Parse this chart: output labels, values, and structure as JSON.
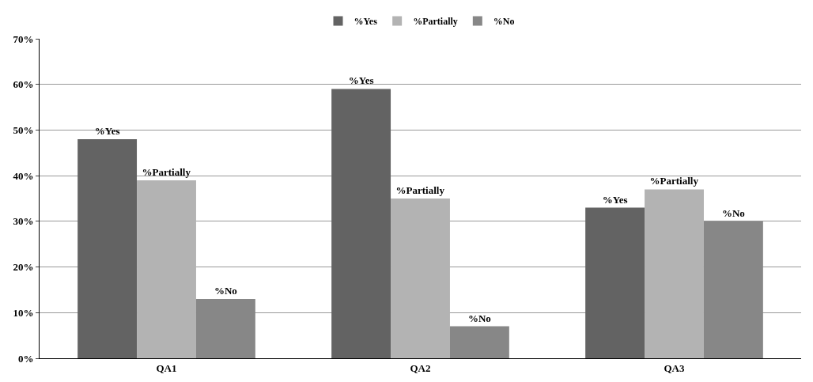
{
  "chart_data": {
    "type": "bar",
    "categories": [
      "QA1",
      "QA2",
      "QA3"
    ],
    "series": [
      {
        "name": "%Yes",
        "color": "#636363",
        "values": [
          48,
          59,
          33
        ],
        "value_labels": [
          "%Yes",
          "%Yes",
          "%Yes"
        ]
      },
      {
        "name": "%Partially",
        "color": "#b3b3b3",
        "values": [
          39,
          35,
          37
        ],
        "value_labels": [
          "%Partially",
          "%Partially",
          "%Partially"
        ]
      },
      {
        "name": "%No",
        "color": "#878787",
        "values": [
          13,
          7,
          30
        ],
        "value_labels": [
          "%No",
          "%No",
          "%No"
        ]
      }
    ],
    "ylim": [
      0,
      70
    ],
    "yticks": [
      {
        "value": 0,
        "label": "0%"
      },
      {
        "value": 10,
        "label": "10%"
      },
      {
        "value": 20,
        "label": "20%"
      },
      {
        "value": 30,
        "label": "30%"
      },
      {
        "value": 40,
        "label": "40%"
      },
      {
        "value": 50,
        "label": "50%"
      },
      {
        "value": 60,
        "label": "60%"
      },
      {
        "value": 70,
        "label": "70%"
      }
    ],
    "grid": "y",
    "legend": "top"
  }
}
